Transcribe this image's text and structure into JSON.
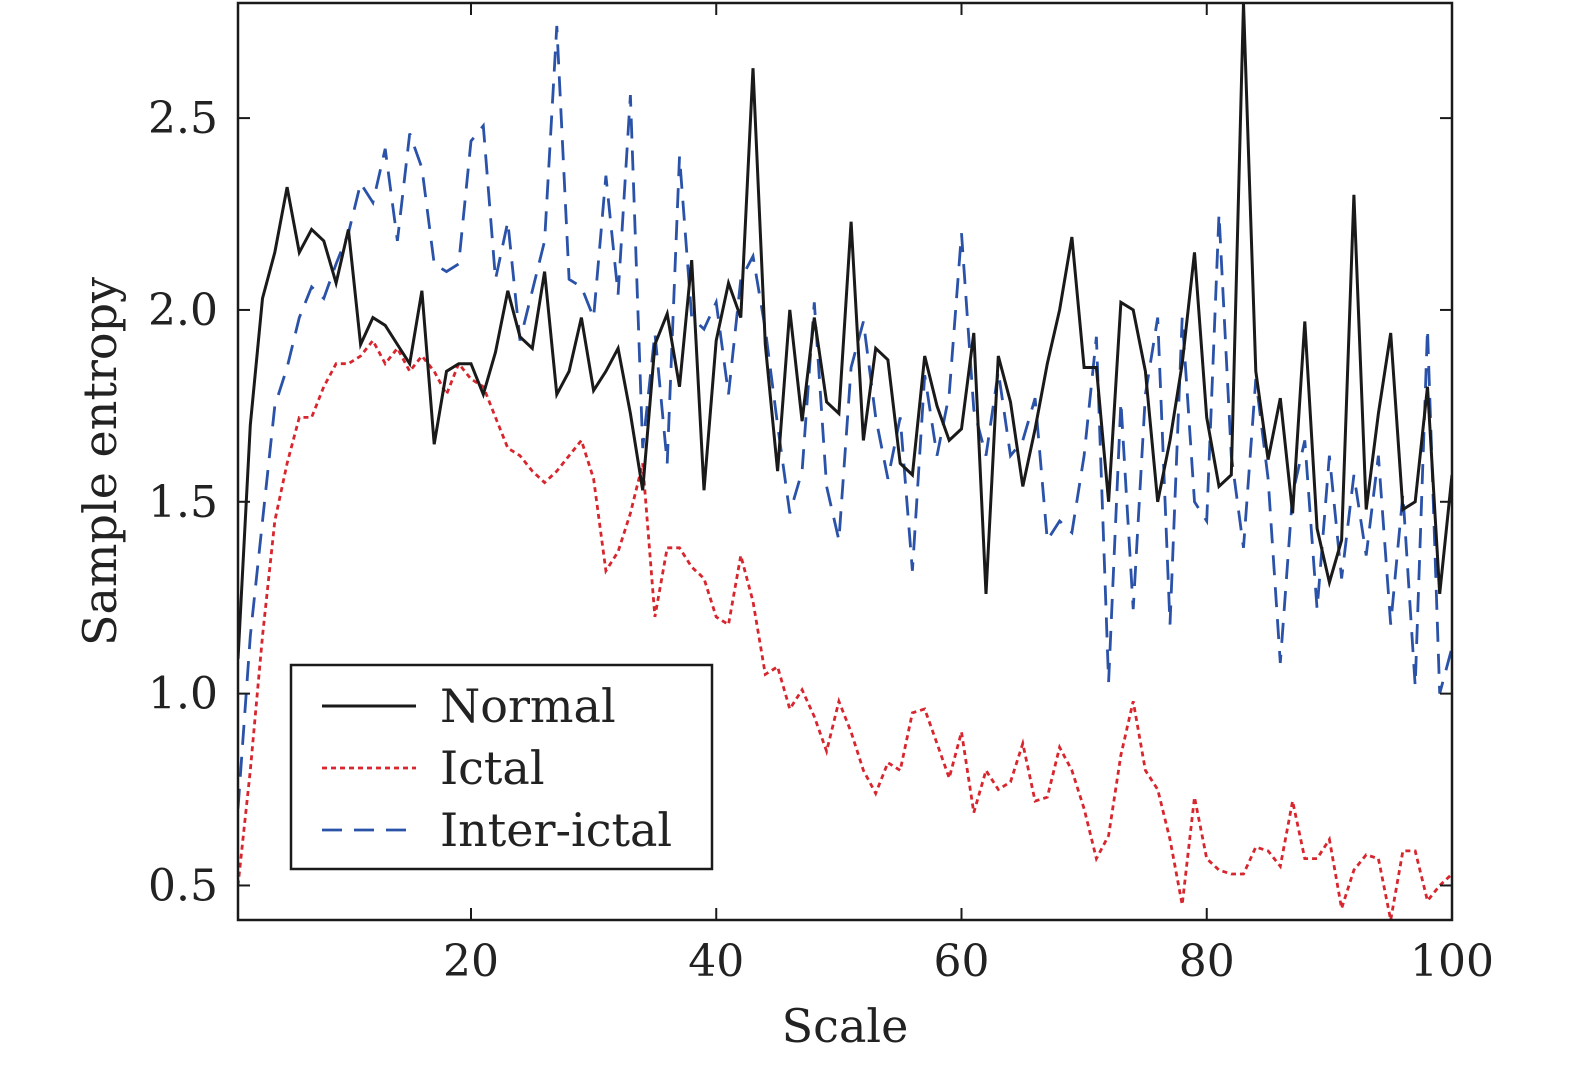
{
  "chart_data": {
    "type": "line",
    "title": "",
    "xlabel": "Scale",
    "ylabel": "Sample entropy",
    "xlim": [
      1,
      100
    ],
    "ylim": [
      0.41,
      2.8
    ],
    "xticks": [
      20,
      40,
      60,
      80,
      100
    ],
    "xtick_labels": [
      "20",
      "40",
      "60",
      "80",
      "100"
    ],
    "yticks": [
      0.5,
      1.0,
      1.5,
      2.0,
      2.5
    ],
    "ytick_labels": [
      "0.5",
      "1.0",
      "1.5",
      "2.0",
      "2.5"
    ],
    "grid": false,
    "legend_position": "bottom-left",
    "x": [
      1,
      2,
      3,
      4,
      5,
      6,
      7,
      8,
      9,
      10,
      11,
      12,
      13,
      14,
      15,
      16,
      17,
      18,
      19,
      20,
      21,
      22,
      23,
      24,
      25,
      26,
      27,
      28,
      29,
      30,
      31,
      32,
      33,
      34,
      35,
      36,
      37,
      38,
      39,
      40,
      41,
      42,
      43,
      44,
      45,
      46,
      47,
      48,
      49,
      50,
      51,
      52,
      53,
      54,
      55,
      56,
      57,
      58,
      59,
      60,
      61,
      62,
      63,
      64,
      65,
      66,
      67,
      68,
      69,
      70,
      71,
      72,
      73,
      74,
      75,
      76,
      77,
      78,
      79,
      80,
      81,
      82,
      83,
      84,
      85,
      86,
      87,
      88,
      89,
      90,
      91,
      92,
      93,
      94,
      95,
      96,
      97,
      98,
      99,
      100
    ],
    "series": [
      {
        "name": "Normal",
        "color": "#1a1a1a",
        "dash": "solid",
        "values": [
          1.09,
          1.7,
          2.03,
          2.15,
          2.32,
          2.15,
          2.21,
          2.18,
          2.07,
          2.21,
          1.91,
          1.98,
          1.96,
          1.91,
          1.86,
          2.05,
          1.65,
          1.84,
          1.86,
          1.86,
          1.78,
          1.89,
          2.05,
          1.93,
          1.9,
          2.1,
          1.78,
          1.84,
          1.98,
          1.79,
          1.84,
          1.9,
          1.73,
          1.53,
          1.91,
          1.99,
          1.8,
          2.13,
          1.53,
          1.92,
          2.07,
          1.98,
          2.63,
          1.91,
          1.58,
          2.0,
          1.71,
          1.98,
          1.76,
          1.73,
          2.23,
          1.66,
          1.9,
          1.87,
          1.6,
          1.57,
          1.88,
          1.75,
          1.66,
          1.69,
          1.94,
          1.26,
          1.88,
          1.76,
          1.54,
          1.69,
          1.86,
          2.0,
          2.19,
          1.85,
          1.85,
          1.5,
          2.02,
          2.0,
          1.84,
          1.5,
          1.66,
          1.86,
          2.15,
          1.72,
          1.54,
          1.57,
          2.8,
          1.84,
          1.61,
          1.77,
          1.47,
          1.97,
          1.43,
          1.29,
          1.4,
          2.3,
          1.48,
          1.73,
          1.94,
          1.48,
          1.5,
          1.8,
          1.26,
          1.57
        ]
      },
      {
        "name": "Ictal",
        "color": "#d8262e",
        "dash": "dotted",
        "values": [
          0.5,
          0.8,
          1.15,
          1.45,
          1.6,
          1.72,
          1.72,
          1.8,
          1.86,
          1.86,
          1.88,
          1.92,
          1.86,
          1.9,
          1.84,
          1.88,
          1.84,
          1.78,
          1.86,
          1.82,
          1.8,
          1.72,
          1.64,
          1.62,
          1.58,
          1.55,
          1.58,
          1.62,
          1.66,
          1.56,
          1.32,
          1.37,
          1.47,
          1.6,
          1.2,
          1.38,
          1.38,
          1.33,
          1.3,
          1.2,
          1.18,
          1.36,
          1.24,
          1.05,
          1.07,
          0.96,
          1.01,
          0.94,
          0.85,
          0.98,
          0.9,
          0.8,
          0.74,
          0.82,
          0.8,
          0.95,
          0.96,
          0.87,
          0.78,
          0.9,
          0.69,
          0.8,
          0.75,
          0.77,
          0.87,
          0.72,
          0.73,
          0.86,
          0.8,
          0.7,
          0.57,
          0.63,
          0.84,
          0.98,
          0.8,
          0.75,
          0.62,
          0.45,
          0.73,
          0.57,
          0.54,
          0.53,
          0.53,
          0.6,
          0.59,
          0.55,
          0.72,
          0.57,
          0.57,
          0.62,
          0.44,
          0.54,
          0.58,
          0.57,
          0.41,
          0.59,
          0.59,
          0.46,
          0.5,
          0.53
        ]
      },
      {
        "name": "Inter-ictal",
        "color": "#2a52a8",
        "dash": "dashed",
        "values": [
          0.7,
          1.15,
          1.45,
          1.75,
          1.85,
          1.98,
          2.06,
          2.03,
          2.12,
          2.2,
          2.33,
          2.28,
          2.42,
          2.18,
          2.46,
          2.37,
          2.12,
          2.1,
          2.12,
          2.44,
          2.48,
          2.08,
          2.23,
          1.92,
          2.05,
          2.18,
          2.74,
          2.08,
          2.06,
          1.98,
          2.35,
          2.04,
          2.56,
          1.64,
          1.94,
          1.6,
          2.4,
          1.98,
          1.95,
          2.02,
          1.78,
          2.08,
          2.14,
          1.95,
          1.7,
          1.47,
          1.58,
          2.02,
          1.54,
          1.4,
          1.85,
          1.97,
          1.72,
          1.56,
          1.72,
          1.32,
          1.83,
          1.62,
          1.78,
          2.2,
          1.74,
          1.62,
          1.84,
          1.62,
          1.66,
          1.77,
          1.4,
          1.45,
          1.42,
          1.62,
          1.93,
          1.03,
          1.76,
          1.22,
          1.78,
          1.98,
          1.18,
          1.98,
          1.5,
          1.45,
          2.25,
          1.62,
          1.38,
          1.82,
          1.56,
          1.08,
          1.52,
          1.66,
          1.22,
          1.62,
          1.3,
          1.57,
          1.36,
          1.62,
          1.18,
          1.52,
          1.02,
          1.95,
          1.0,
          1.12
        ]
      }
    ]
  }
}
